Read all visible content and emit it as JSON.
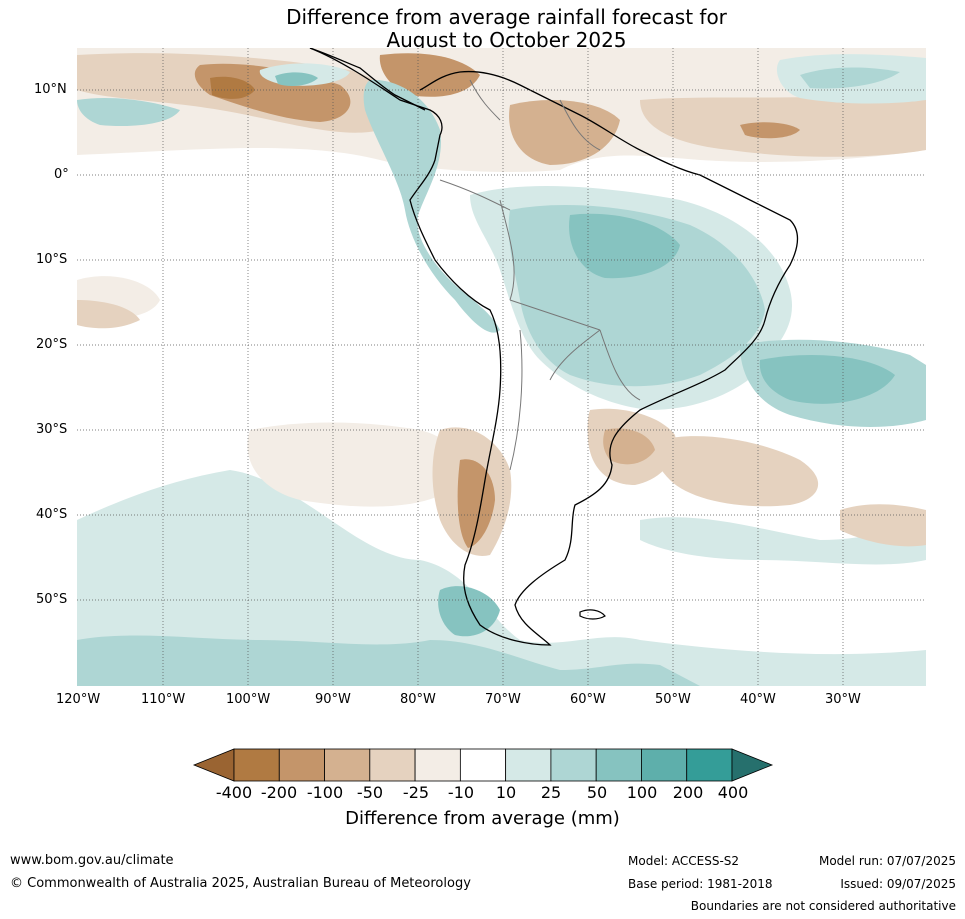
{
  "title": {
    "line1": "Difference from average rainfall forecast for",
    "line2": "August to October 2025"
  },
  "axes": {
    "lat_ticks": [
      "10°N",
      "0°",
      "10°S",
      "20°S",
      "30°S",
      "40°S",
      "50°S"
    ],
    "lon_ticks": [
      "120°W",
      "110°W",
      "100°W",
      "90°W",
      "80°W",
      "70°W",
      "60°W",
      "50°W",
      "40°W",
      "30°W"
    ],
    "lat_range": [
      -60,
      15
    ],
    "lon_range": [
      -120,
      -20
    ],
    "grid": true
  },
  "colorbar": {
    "title": "Difference from average (mm)",
    "labels": [
      "-400",
      "-200",
      "-100",
      "-50",
      "-25",
      "-10",
      "10",
      "25",
      "50",
      "100",
      "200",
      "400"
    ],
    "colors": [
      "#9a6432",
      "#b07a42",
      "#c4956a",
      "#d4b190",
      "#e5d2bf",
      "#f3ede6",
      "#ffffff",
      "#d5e9e7",
      "#aed6d4",
      "#86c3c0",
      "#5eafab",
      "#349d98",
      "#26706d"
    ]
  },
  "footer": {
    "website": "www.bom.gov.au/climate",
    "copyright": "© Commonwealth of Australia 2025, Australian Bureau of Meteorology",
    "model": "Model: ACCESS-S2",
    "base_period": "Base period: 1981-2018",
    "model_run": "Model run: 07/07/2025",
    "issued": "Issued: 09/07/2025",
    "disclaimer": "Boundaries are not considered authoritative"
  }
}
